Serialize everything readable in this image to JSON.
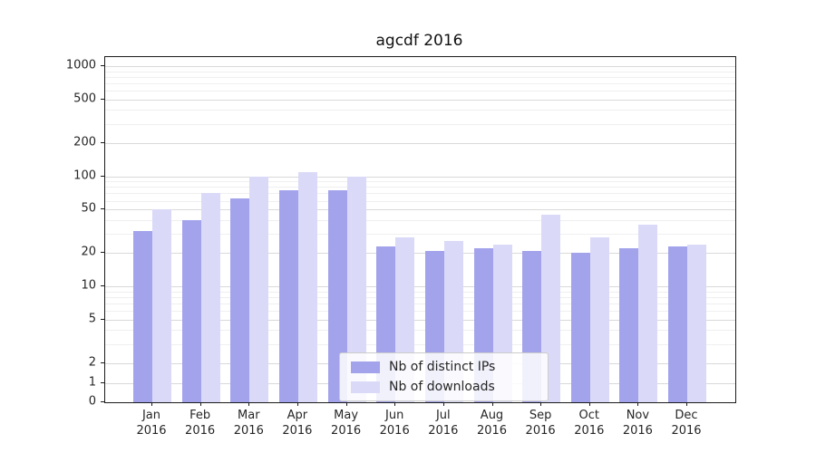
{
  "chart_data": {
    "type": "bar",
    "title": "agcdf 2016",
    "categories": [
      "Jan",
      "Feb",
      "Mar",
      "Apr",
      "May",
      "Jun",
      "Jul",
      "Aug",
      "Sep",
      "Oct",
      "Nov",
      "Dec"
    ],
    "category_year": "2016",
    "series": [
      {
        "name": "Nb of distinct IPs",
        "color": "#a3a3ec",
        "values": [
          32,
          40,
          63,
          75,
          75,
          23,
          21,
          22,
          21,
          20,
          22,
          23
        ]
      },
      {
        "name": "Nb of downloads",
        "color": "#dadaf8",
        "values": [
          50,
          70,
          100,
          110,
          100,
          28,
          26,
          24,
          45,
          28,
          36,
          24
        ]
      }
    ],
    "y_scale": "symlog",
    "y_ticks": [
      0,
      1,
      2,
      5,
      10,
      20,
      50,
      100,
      200,
      500,
      1000
    ],
    "ylim": [
      0,
      1250
    ],
    "grid": true,
    "legend": {
      "position": "lower-center",
      "entries": [
        "Nb of distinct IPs",
        "Nb of downloads"
      ]
    },
    "colors": {
      "grid_major": "#d9d9d9",
      "grid_minor": "#efefef",
      "axis": "#1a1a1a",
      "text": "#262626"
    }
  }
}
